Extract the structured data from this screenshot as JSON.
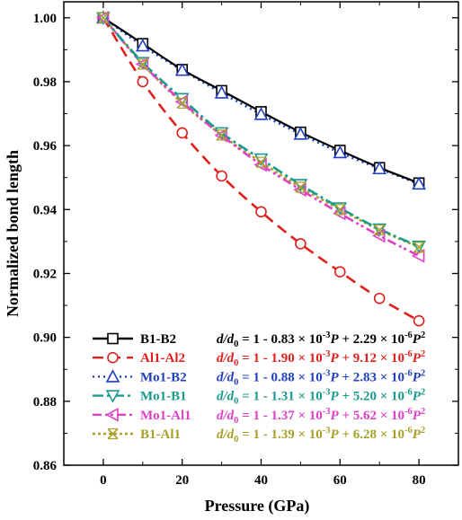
{
  "chart_data": {
    "type": "line",
    "xlabel": "Pressure (GPa)",
    "ylabel": "Normalized bond length",
    "xlim": [
      -10,
      90
    ],
    "ylim": [
      0.86,
      1.005
    ],
    "xticks": [
      "0",
      "20",
      "40",
      "60",
      "80"
    ],
    "yticks": [
      "0.86",
      "0.88",
      "0.90",
      "0.92",
      "0.94",
      "0.96",
      "0.98",
      "1.00"
    ],
    "x": [
      0,
      10,
      20,
      30,
      40,
      50,
      60,
      70,
      80
    ],
    "legend_position": "bottom-left (inside)",
    "series": [
      {
        "name": "B1-B2",
        "color": "#000000",
        "line_style": "solid",
        "marker": "square",
        "values": [
          1.0,
          0.9919,
          0.9838,
          0.9772,
          0.9706,
          0.9642,
          0.9585,
          0.9531,
          0.9483
        ],
        "equation": {
          "base": "d/d0 = 1 - 0.83 × 10",
          "exp1": "-3",
          "mid": "P + 2.29 × 10",
          "exp2": "-6",
          "end": "P",
          "exp3": "2"
        }
      },
      {
        "name": "Al1-Al2",
        "color": "#e0201c",
        "line_style": "dash",
        "marker": "circle",
        "values": [
          1.0,
          0.98,
          0.964,
          0.9505,
          0.9393,
          0.9293,
          0.9205,
          0.9122,
          0.9052
        ],
        "equation": {
          "base": "d/d0 = 1 - 1.90 × 10",
          "exp1": "-3",
          "mid": "P + 9.12 × 10",
          "exp2": "-6",
          "end": "P",
          "exp3": "2"
        }
      },
      {
        "name": "Mo1-B2",
        "color": "#1f3fbf",
        "line_style": "dot",
        "marker": "triangle-up",
        "values": [
          1.0,
          0.9912,
          0.9836,
          0.9765,
          0.9698,
          0.9636,
          0.9578,
          0.9528,
          0.948
        ],
        "equation": {
          "base": "d/d0 = 1 - 0.88 × 10",
          "exp1": "-3",
          "mid": "P + 2.83 × 10",
          "exp2": "-6",
          "end": "P",
          "exp3": "2"
        }
      },
      {
        "name": "Mo1-B1",
        "color": "#1a9a8c",
        "line_style": "dash-dot",
        "marker": "triangle-down",
        "values": [
          1.0,
          0.986,
          0.9747,
          0.964,
          0.9558,
          0.9478,
          0.9405,
          0.9339,
          0.9285
        ],
        "equation": {
          "base": "d/d0 = 1 - 1.31 × 10",
          "exp1": "-3",
          "mid": "P + 5.20 × 10",
          "exp2": "-6",
          "end": "P",
          "exp3": "2"
        }
      },
      {
        "name": "Mo1-Al1",
        "color": "#e040c8",
        "line_style": "dash-dot-dot",
        "marker": "triangle-left",
        "values": [
          1.0,
          0.9855,
          0.9737,
          0.9632,
          0.954,
          0.9462,
          0.9388,
          0.9318,
          0.9255
        ],
        "equation": {
          "base": "d/d0 = 1 - 1.37 × 10",
          "exp1": "-3",
          "mid": "P + 5.62 × 10",
          "exp2": "-6",
          "end": "P",
          "exp3": "2"
        }
      },
      {
        "name": "B1-Al1",
        "color": "#a8a02a",
        "line_style": "short-dot",
        "marker": "x-square",
        "values": [
          1.0,
          0.9855,
          0.9733,
          0.9633,
          0.9548,
          0.947,
          0.94,
          0.9336,
          0.9282
        ],
        "equation": {
          "base": "d/d0 = 1 - 1.39 × 10",
          "exp1": "-3",
          "mid": "P + 6.28 × 10",
          "exp2": "-6",
          "end": "P",
          "exp3": "2"
        }
      }
    ]
  }
}
